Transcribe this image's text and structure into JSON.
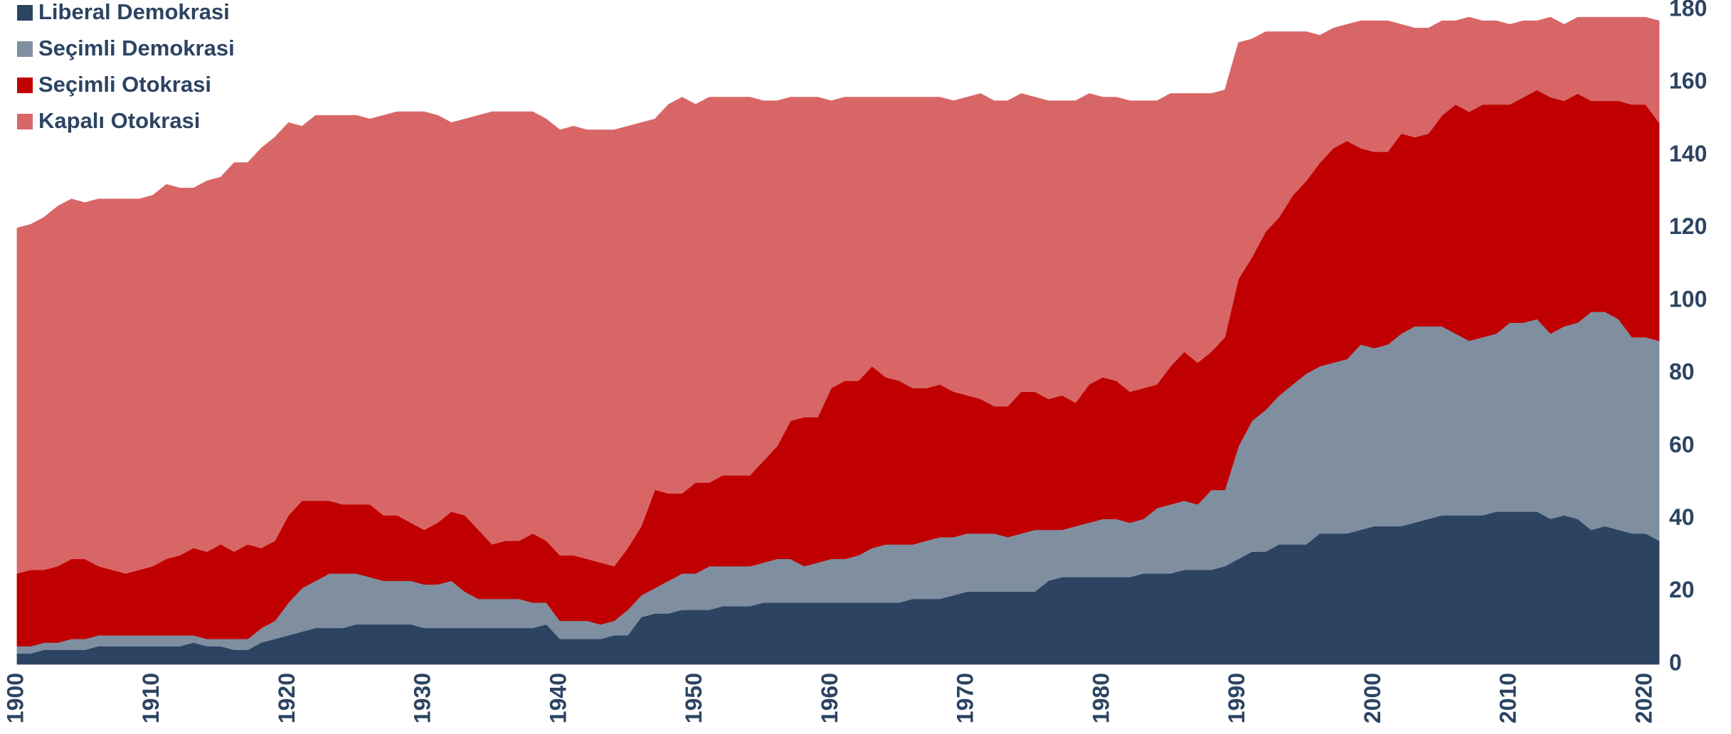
{
  "chart_data": {
    "type": "stacked_area",
    "x": [
      1900,
      1901,
      1902,
      1903,
      1904,
      1905,
      1906,
      1907,
      1908,
      1909,
      1910,
      1911,
      1912,
      1913,
      1914,
      1915,
      1916,
      1917,
      1918,
      1919,
      1920,
      1921,
      1922,
      1923,
      1924,
      1925,
      1926,
      1927,
      1928,
      1929,
      1930,
      1931,
      1932,
      1933,
      1934,
      1935,
      1936,
      1937,
      1938,
      1939,
      1940,
      1941,
      1942,
      1943,
      1944,
      1945,
      1946,
      1947,
      1948,
      1949,
      1950,
      1951,
      1952,
      1953,
      1954,
      1955,
      1956,
      1957,
      1958,
      1959,
      1960,
      1961,
      1962,
      1963,
      1964,
      1965,
      1966,
      1967,
      1968,
      1969,
      1970,
      1971,
      1972,
      1973,
      1974,
      1975,
      1976,
      1977,
      1978,
      1979,
      1980,
      1981,
      1982,
      1983,
      1984,
      1985,
      1986,
      1987,
      1988,
      1989,
      1990,
      1991,
      1992,
      1993,
      1994,
      1995,
      1996,
      1997,
      1998,
      1999,
      2000,
      2001,
      2002,
      2003,
      2004,
      2005,
      2006,
      2007,
      2008,
      2009,
      2010,
      2011,
      2012,
      2013,
      2014,
      2015,
      2016,
      2017,
      2018,
      2019,
      2020,
      2021
    ],
    "series": [
      {
        "name": "Liberal Demokrasi",
        "color": "#2c4462",
        "values": [
          3,
          3,
          4,
          4,
          4,
          4,
          5,
          5,
          5,
          5,
          5,
          5,
          5,
          6,
          5,
          5,
          4,
          4,
          6,
          7,
          8,
          9,
          10,
          10,
          10,
          11,
          11,
          11,
          11,
          11,
          10,
          10,
          10,
          10,
          10,
          10,
          10,
          10,
          10,
          11,
          7,
          7,
          7,
          7,
          8,
          8,
          13,
          14,
          14,
          15,
          15,
          15,
          16,
          16,
          16,
          17,
          17,
          17,
          17,
          17,
          17,
          17,
          17,
          17,
          17,
          17,
          18,
          18,
          18,
          19,
          20,
          20,
          20,
          20,
          20,
          20,
          23,
          24,
          24,
          24,
          24,
          24,
          24,
          25,
          25,
          25,
          26,
          26,
          26,
          27,
          29,
          31,
          31,
          33,
          33,
          33,
          36,
          36,
          36,
          37,
          38,
          38,
          38,
          39,
          40,
          41,
          41,
          41,
          41,
          42,
          42,
          42,
          42,
          40,
          41,
          40,
          37,
          38,
          37,
          36,
          36,
          34
        ]
      },
      {
        "name": "Seçimli Demokrasi",
        "color": "#7f8fa0",
        "values": [
          2,
          2,
          2,
          2,
          3,
          3,
          3,
          3,
          3,
          3,
          3,
          3,
          3,
          2,
          2,
          2,
          3,
          3,
          4,
          5,
          9,
          12,
          13,
          15,
          15,
          14,
          13,
          12,
          12,
          12,
          12,
          12,
          13,
          10,
          8,
          8,
          8,
          8,
          7,
          6,
          5,
          5,
          5,
          4,
          4,
          7,
          6,
          7,
          9,
          10,
          10,
          12,
          11,
          11,
          11,
          11,
          12,
          12,
          10,
          11,
          12,
          12,
          13,
          15,
          16,
          16,
          15,
          16,
          17,
          16,
          16,
          16,
          16,
          15,
          16,
          17,
          14,
          13,
          14,
          15,
          16,
          16,
          15,
          15,
          18,
          19,
          19,
          18,
          22,
          21,
          31,
          36,
          39,
          41,
          44,
          47,
          46,
          47,
          48,
          51,
          49,
          50,
          53,
          54,
          53,
          52,
          50,
          48,
          49,
          49,
          52,
          52,
          53,
          51,
          52,
          54,
          60,
          59,
          58,
          54,
          54,
          55
        ]
      },
      {
        "name": "Seçimli Otokrasi",
        "color": "#c00000",
        "values": [
          20,
          21,
          20,
          21,
          22,
          22,
          19,
          18,
          17,
          18,
          19,
          21,
          22,
          24,
          24,
          26,
          24,
          26,
          22,
          22,
          24,
          24,
          22,
          20,
          19,
          19,
          20,
          18,
          18,
          16,
          15,
          17,
          19,
          21,
          19,
          15,
          16,
          16,
          19,
          17,
          18,
          18,
          17,
          17,
          15,
          17,
          19,
          27,
          24,
          22,
          25,
          23,
          25,
          25,
          25,
          28,
          31,
          38,
          41,
          40,
          47,
          49,
          48,
          50,
          46,
          45,
          43,
          42,
          42,
          40,
          38,
          37,
          35,
          36,
          39,
          38,
          36,
          37,
          34,
          38,
          39,
          38,
          36,
          36,
          34,
          38,
          41,
          39,
          38,
          42,
          46,
          45,
          49,
          49,
          52,
          53,
          56,
          59,
          60,
          54,
          54,
          53,
          55,
          52,
          53,
          58,
          63,
          63,
          64,
          63,
          60,
          62,
          63,
          65,
          62,
          63,
          58,
          58,
          60,
          64,
          64,
          60
        ]
      },
      {
        "name": "Kapalı Otokrasi",
        "color": "#d96666",
        "values": [
          95,
          95,
          97,
          99,
          99,
          98,
          101,
          102,
          103,
          102,
          102,
          103,
          101,
          99,
          102,
          101,
          107,
          105,
          110,
          111,
          108,
          103,
          106,
          106,
          107,
          107,
          106,
          110,
          111,
          113,
          115,
          112,
          107,
          109,
          114,
          119,
          118,
          118,
          116,
          116,
          117,
          118,
          118,
          119,
          120,
          116,
          111,
          102,
          107,
          109,
          104,
          106,
          104,
          104,
          104,
          99,
          95,
          89,
          88,
          88,
          79,
          78,
          78,
          74,
          77,
          78,
          80,
          80,
          79,
          80,
          82,
          84,
          84,
          84,
          82,
          81,
          82,
          81,
          83,
          80,
          77,
          78,
          80,
          79,
          78,
          75,
          71,
          74,
          71,
          68,
          65,
          60,
          55,
          51,
          45,
          41,
          35,
          33,
          32,
          35,
          36,
          36,
          30,
          30,
          29,
          26,
          23,
          26,
          23,
          23,
          22,
          21,
          19,
          22,
          21,
          21,
          23,
          23,
          23,
          24,
          24,
          28
        ]
      }
    ],
    "xlim": [
      1900,
      2021
    ],
    "xticks": [
      1900,
      1910,
      1920,
      1930,
      1940,
      1950,
      1960,
      1970,
      1980,
      1990,
      2000,
      2010,
      2020
    ],
    "ylim": [
      0,
      180
    ],
    "yticks": [
      0,
      20,
      40,
      60,
      80,
      100,
      120,
      140,
      160,
      180
    ],
    "y_axis_side": "right",
    "legend": "top-left",
    "grid": false
  }
}
